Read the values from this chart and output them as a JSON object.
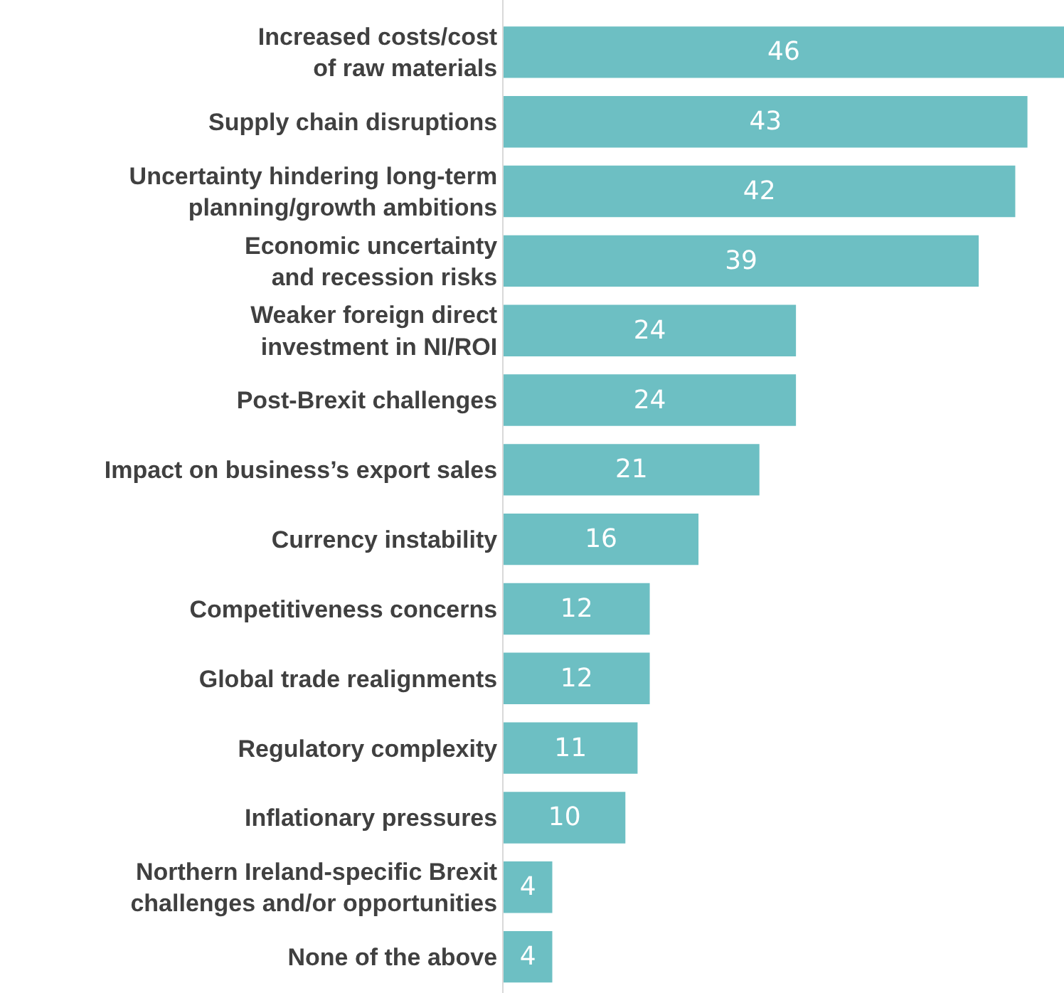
{
  "chart_data": {
    "type": "bar",
    "orientation": "horizontal",
    "data_labels": true,
    "color": "#6dbfc3",
    "categories": [
      "Increased costs/cost\nof raw materials",
      "Supply chain disruptions",
      "Uncertainty hindering long-term\nplanning/growth ambitions",
      "Economic uncertainty\nand recession risks",
      "Weaker foreign direct\ninvestment in NI/ROI",
      "Post-Brexit challenges",
      "Impact on business’s export sales",
      "Currency instability",
      "Competitiveness concerns",
      "Global trade realignments",
      "Regulatory complexity",
      "Inflationary pressures",
      "Northern Ireland-specific Brexit\nchallenges and/or opportunities",
      "None of the above"
    ],
    "values": [
      46,
      43,
      42,
      39,
      24,
      24,
      21,
      16,
      12,
      12,
      11,
      10,
      4,
      4
    ]
  }
}
